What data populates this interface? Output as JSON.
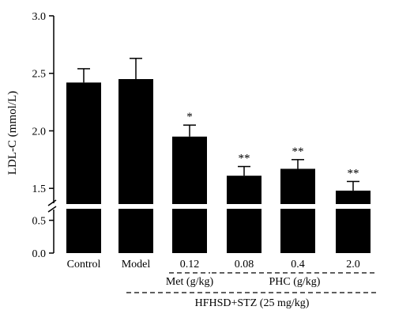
{
  "chart_data": {
    "type": "bar",
    "title": "",
    "xlabel": "",
    "ylabel": "LDL-C (mmol/L)",
    "categories": [
      "Control",
      "Model",
      "0.12",
      "0.08",
      "0.4",
      "2.0"
    ],
    "values": [
      2.42,
      2.45,
      1.95,
      1.61,
      1.67,
      1.48
    ],
    "errors": [
      0.12,
      0.18,
      0.1,
      0.08,
      0.08,
      0.08
    ],
    "significance": [
      "",
      "",
      "*",
      "**",
      "**",
      "**"
    ],
    "ylim_lower": [
      0,
      0.7
    ],
    "ylim_upper": [
      1.35,
      3.0
    ],
    "axis_break": true,
    "y_ticks_lower": [
      "0.0",
      "0.5"
    ],
    "y_ticks_upper": [
      "1.5",
      "2.0",
      "2.5",
      "3.0"
    ],
    "grid": false,
    "bar_color": "#000000",
    "groups": [
      {
        "label": "Met (g/kg)",
        "categories": [
          "0.12"
        ]
      },
      {
        "label": "PHC (g/kg)",
        "categories": [
          "0.08",
          "0.4",
          "2.0"
        ]
      },
      {
        "label": "HFHSD+STZ (25 mg/kg)",
        "categories": [
          "0.12",
          "0.08",
          "0.4",
          "2.0"
        ]
      }
    ]
  }
}
